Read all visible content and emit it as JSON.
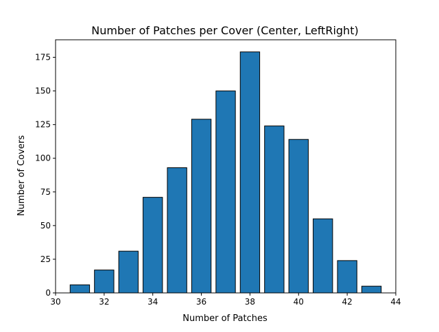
{
  "chart_data": {
    "type": "bar",
    "title": "Number of Patches per Cover (Center, LeftRight)",
    "xlabel": "Number of Patches",
    "ylabel": "Number of Covers",
    "x": [
      31,
      32,
      33,
      34,
      35,
      36,
      37,
      38,
      39,
      40,
      41,
      42,
      43
    ],
    "values": [
      6,
      17,
      31,
      71,
      93,
      129,
      150,
      179,
      124,
      114,
      55,
      24,
      5
    ],
    "xlim": [
      30,
      44
    ],
    "ylim": [
      0,
      188
    ],
    "xticks": [
      30,
      32,
      34,
      36,
      38,
      40,
      42,
      44
    ],
    "yticks": [
      0,
      25,
      50,
      75,
      100,
      125,
      150,
      175
    ],
    "bar_color": "#1f77b4",
    "edge_color": "#000000",
    "grid": false,
    "legend": false
  }
}
